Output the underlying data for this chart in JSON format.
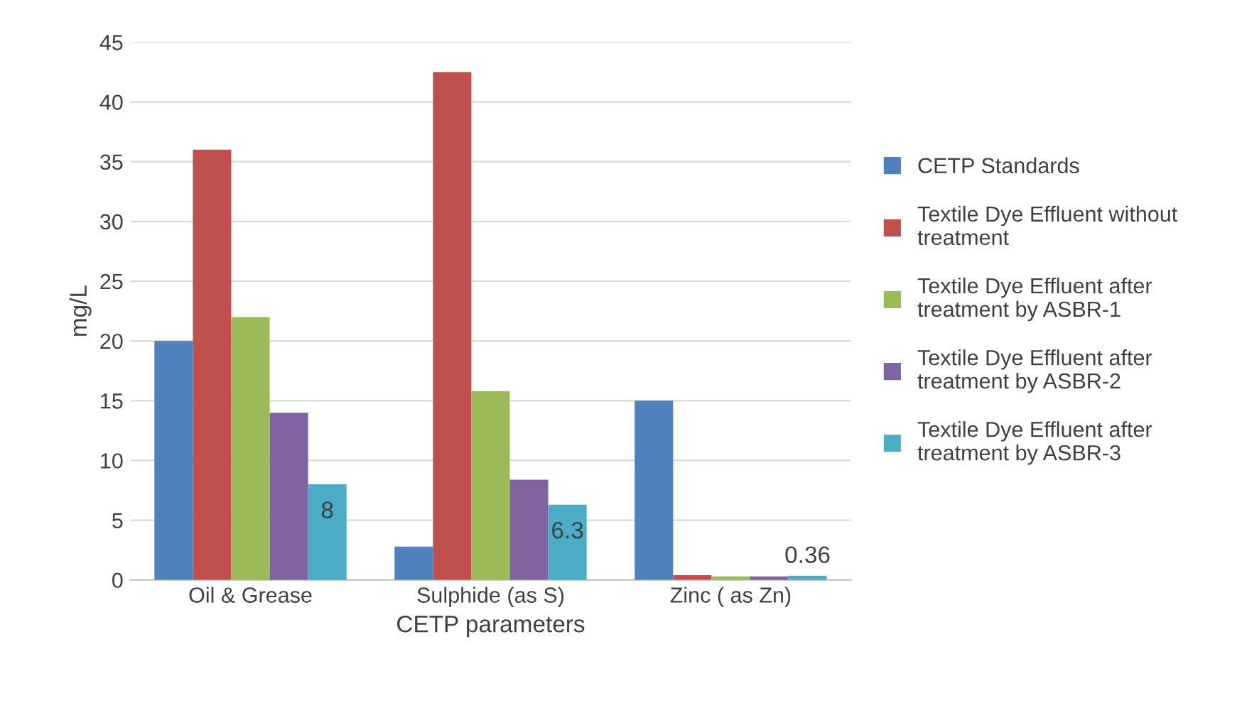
{
  "chart_data": {
    "type": "bar",
    "xlabel": "CETP parameters",
    "ylabel": "mg/L",
    "categories": [
      "Oil & Grease",
      "Sulphide (as S)",
      "Zinc ( as Zn)"
    ],
    "series": [
      {
        "name": "CETP Standards",
        "color": "#4f81bd",
        "values": [
          20,
          2.8,
          15
        ]
      },
      {
        "name": "Textile Dye Effluent without treatment",
        "color": "#c0504d",
        "values": [
          36,
          42.5,
          0.4
        ]
      },
      {
        "name": "Textile Dye Effluent after treatment by ASBR-1",
        "color": "#9bbb59",
        "values": [
          22,
          15.8,
          0.3
        ]
      },
      {
        "name": "Textile Dye Effluent after treatment by ASBR-2",
        "color": "#8064a2",
        "values": [
          14,
          8.4,
          0.3
        ]
      },
      {
        "name": "Textile Dye Effluent after treatment by ASBR-3",
        "color": "#4bacc6",
        "values": [
          8,
          6.3,
          0.36
        ],
        "value_labels": [
          "8",
          "6.3",
          "0.36"
        ]
      }
    ],
    "ylim": [
      0,
      45
    ],
    "yticks": [
      0,
      5,
      10,
      15,
      20,
      25,
      30,
      35,
      40,
      45
    ],
    "grid": "y",
    "legend": "right"
  }
}
